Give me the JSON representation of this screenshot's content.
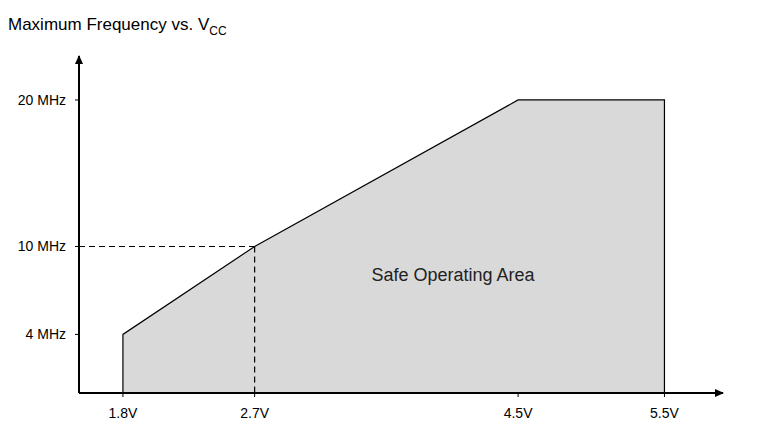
{
  "chart_data": {
    "type": "area",
    "title": "Maximum Frequency vs. VCC",
    "x": [
      1.8,
      2.7,
      4.5,
      5.5
    ],
    "values": [
      4,
      10,
      20,
      20
    ],
    "color": "#d9d9d9",
    "xlim": [
      1.5,
      5.9
    ],
    "xticks": [
      {
        "value": 1.8,
        "label": "1.8V"
      },
      {
        "value": 2.7,
        "label": "2.7V"
      },
      {
        "value": 4.5,
        "label": "4.5V"
      },
      {
        "value": 5.5,
        "label": "5.5V"
      }
    ],
    "ylim": [
      0,
      23
    ],
    "yticks": [
      {
        "value": 4,
        "label": "4 MHz"
      },
      {
        "value": 10,
        "label": "10 MHz"
      },
      {
        "value": 20,
        "label": "20 MHz"
      }
    ],
    "annotations": [
      "Safe Operating Area"
    ],
    "grid": false
  }
}
